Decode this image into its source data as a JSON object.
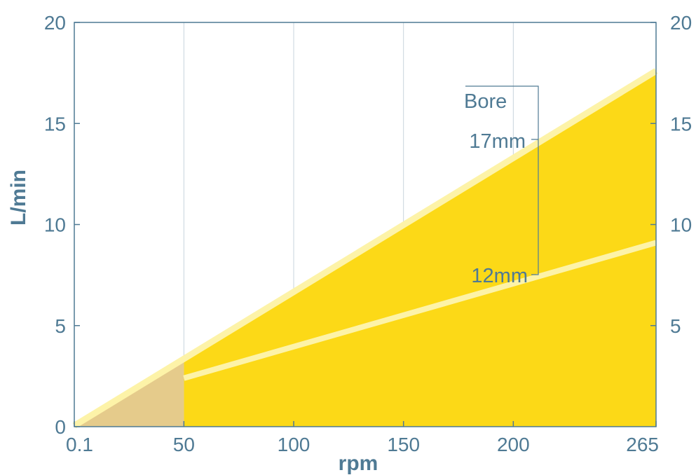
{
  "chart_data": {
    "type": "area",
    "title": "",
    "xlabel": "rpm",
    "ylabel": "L/min",
    "x_ticks": [
      "0.1",
      "50",
      "100",
      "150",
      "200",
      "265"
    ],
    "y_ticks_left": [
      "0",
      "5",
      "10",
      "15",
      "20"
    ],
    "y_ticks_right": [
      "5",
      "10",
      "15",
      "20"
    ],
    "xlim": [
      0.1,
      265
    ],
    "ylim": [
      0,
      20
    ],
    "grid": "vertical",
    "series": [
      {
        "name": "17mm",
        "x": [
          0.1,
          265
        ],
        "y": [
          0.05,
          17.6
        ]
      },
      {
        "name": "12mm",
        "x": [
          50,
          265
        ],
        "y": [
          2.4,
          9.1
        ]
      }
    ],
    "shaded_region": {
      "x": [
        0.1,
        50
      ]
    },
    "annotation": {
      "heading": "Bore",
      "labels": [
        "17mm",
        "12mm"
      ]
    },
    "colors": {
      "fill": "#fcd917",
      "low_speed_fill": "#e5cb8b",
      "line": "#fdf3a8",
      "axis": "#4f7a94",
      "grid": "#c8d4dc"
    }
  }
}
